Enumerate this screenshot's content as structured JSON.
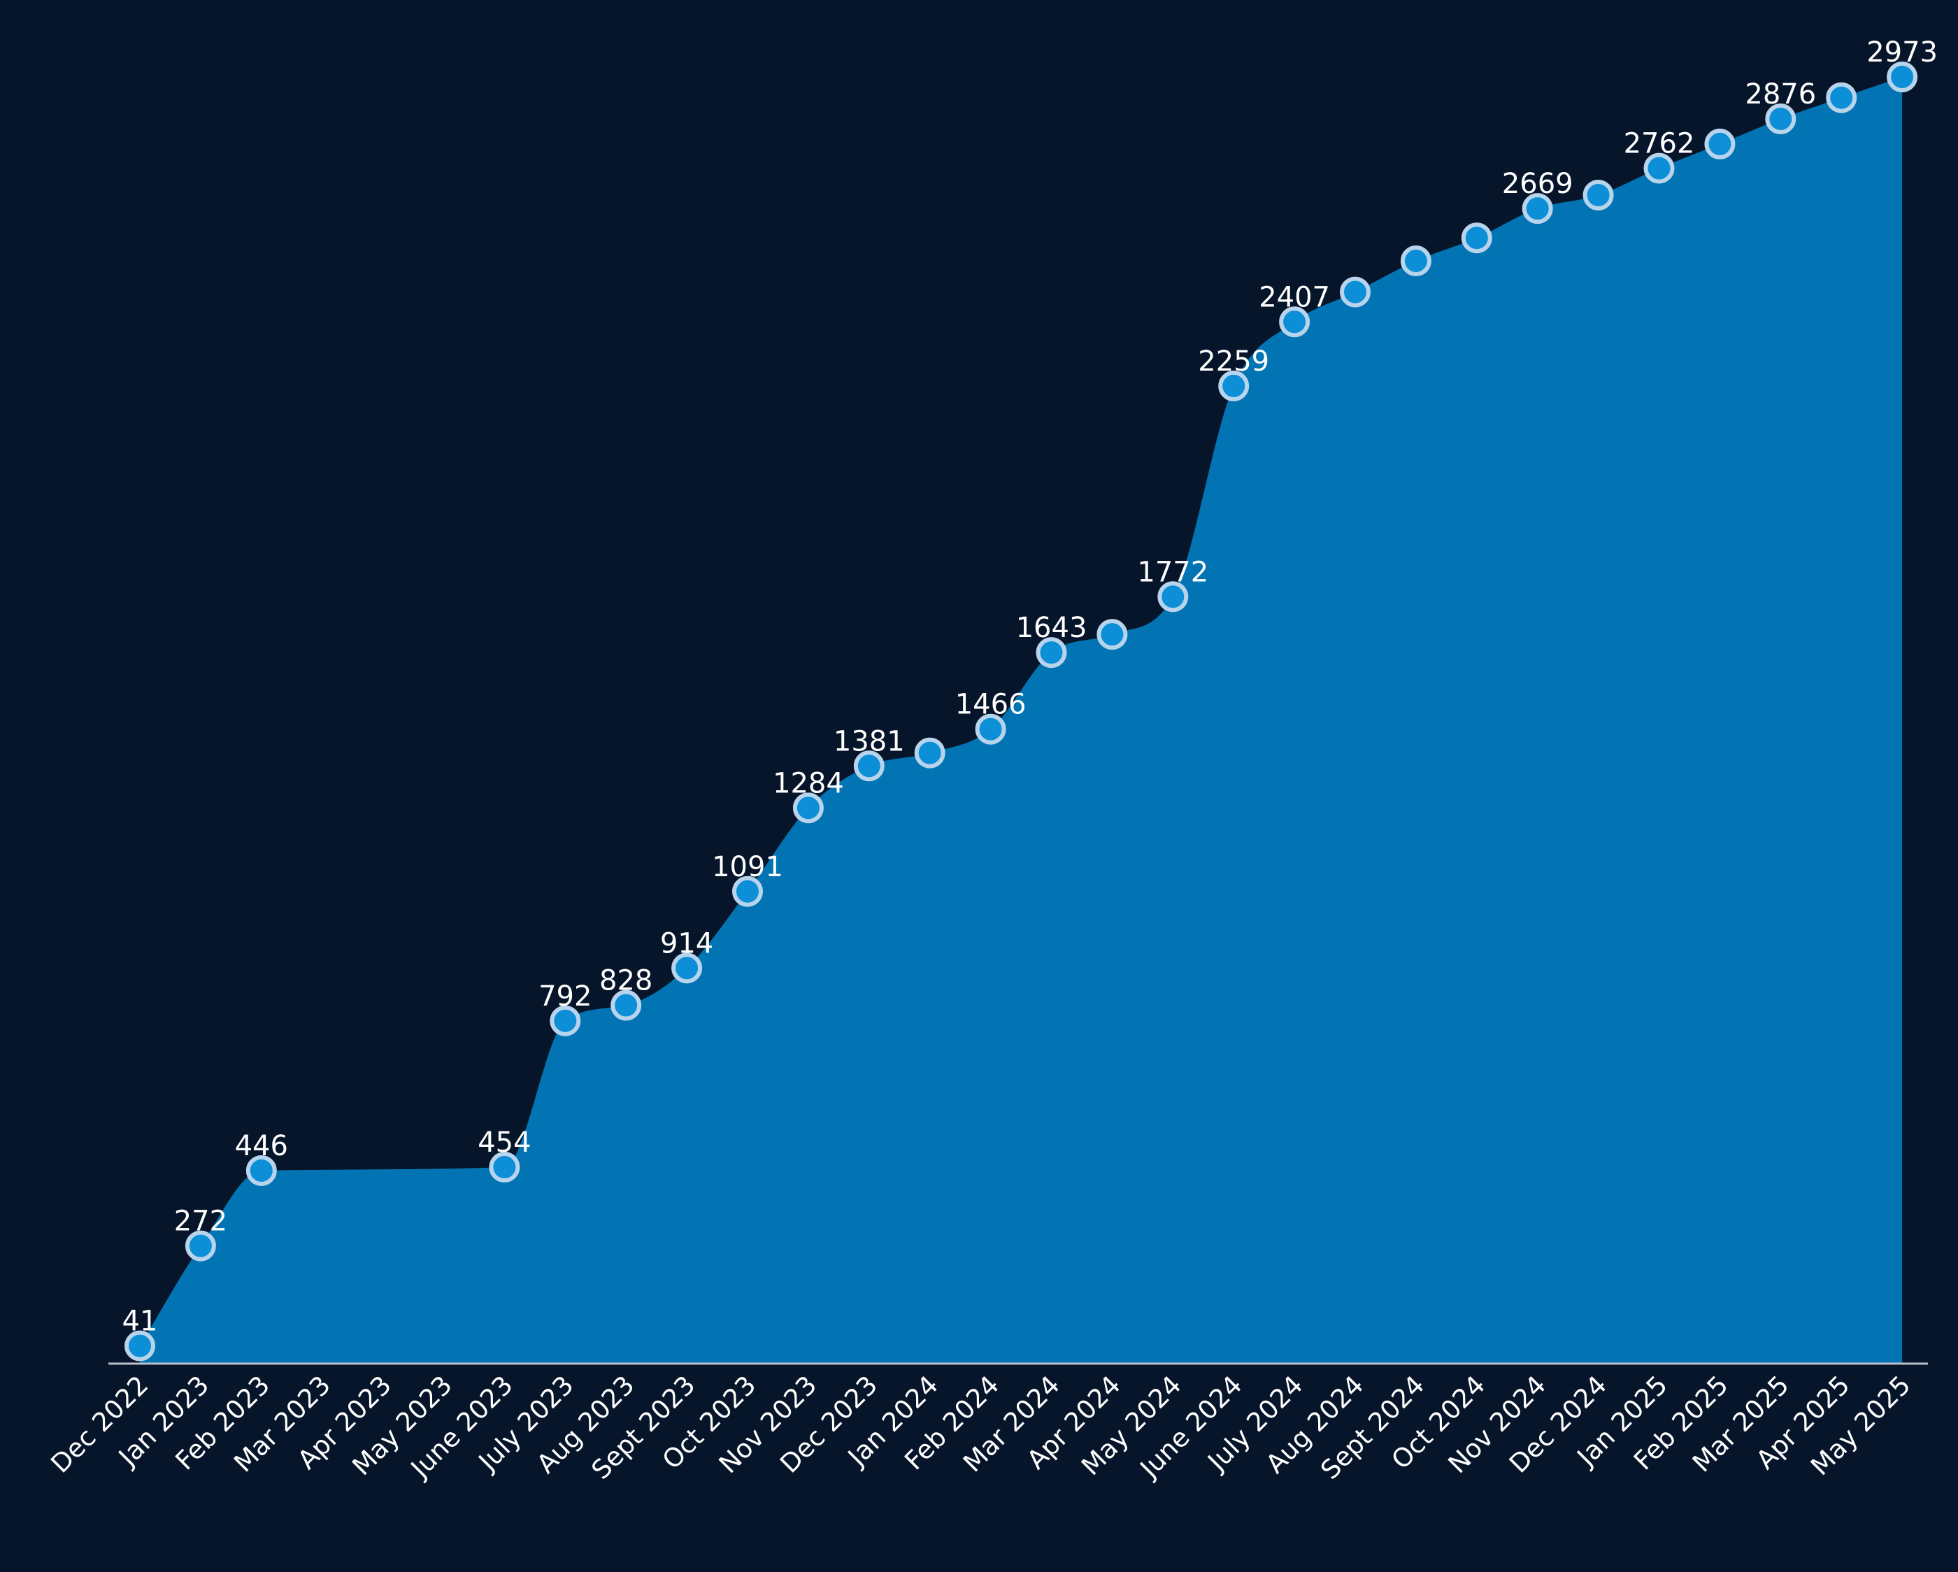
{
  "colors": {
    "background": "#06152a",
    "area_fill": "#0274b3",
    "marker_fill": "#0c8fd6",
    "marker_stroke": "#b8d4ec",
    "axis_line": "#b9c2cc",
    "label_text": "#ffffff"
  },
  "chart_data": {
    "type": "area",
    "title": "",
    "xlabel": "",
    "ylabel": "",
    "grid": false,
    "ylim": [
      0,
      2973
    ],
    "categories": [
      "Dec 2022",
      "Jan 2023",
      "Feb 2023",
      "Mar 2023",
      "Apr 2023",
      "May 2023",
      "June 2023",
      "July 2023",
      "Aug 2023",
      "Sept 2023",
      "Oct 2023",
      "Nov 2023",
      "Dec 2023",
      "Jan 2024",
      "Feb 2024",
      "Mar 2024",
      "Apr 2024",
      "May 2024",
      "June 2024",
      "July 2024",
      "Aug 2024",
      "Sept 2024",
      "Oct 2024",
      "Nov 2024",
      "Dec 2024",
      "Jan 2025",
      "Feb 2025",
      "Mar 2025",
      "Apr 2025",
      "May 2025"
    ],
    "values": [
      41,
      272,
      446,
      null,
      null,
      null,
      454,
      792,
      828,
      914,
      1091,
      1284,
      1381,
      1411,
      1466,
      1643,
      1685,
      1772,
      2259,
      2407,
      2476,
      2548,
      2601,
      2669,
      2700,
      2762,
      2818,
      2876,
      2925,
      2973
    ],
    "data_labels": [
      "41",
      "272",
      "446",
      "",
      "",
      "",
      "454",
      "792",
      "828",
      "914",
      "1091",
      "1284",
      "1381",
      "",
      "1466",
      "1643",
      "",
      "1772",
      "2259",
      "2407",
      "",
      "",
      "",
      "2669",
      "",
      "2762",
      "",
      "2876",
      "",
      "2973"
    ]
  }
}
